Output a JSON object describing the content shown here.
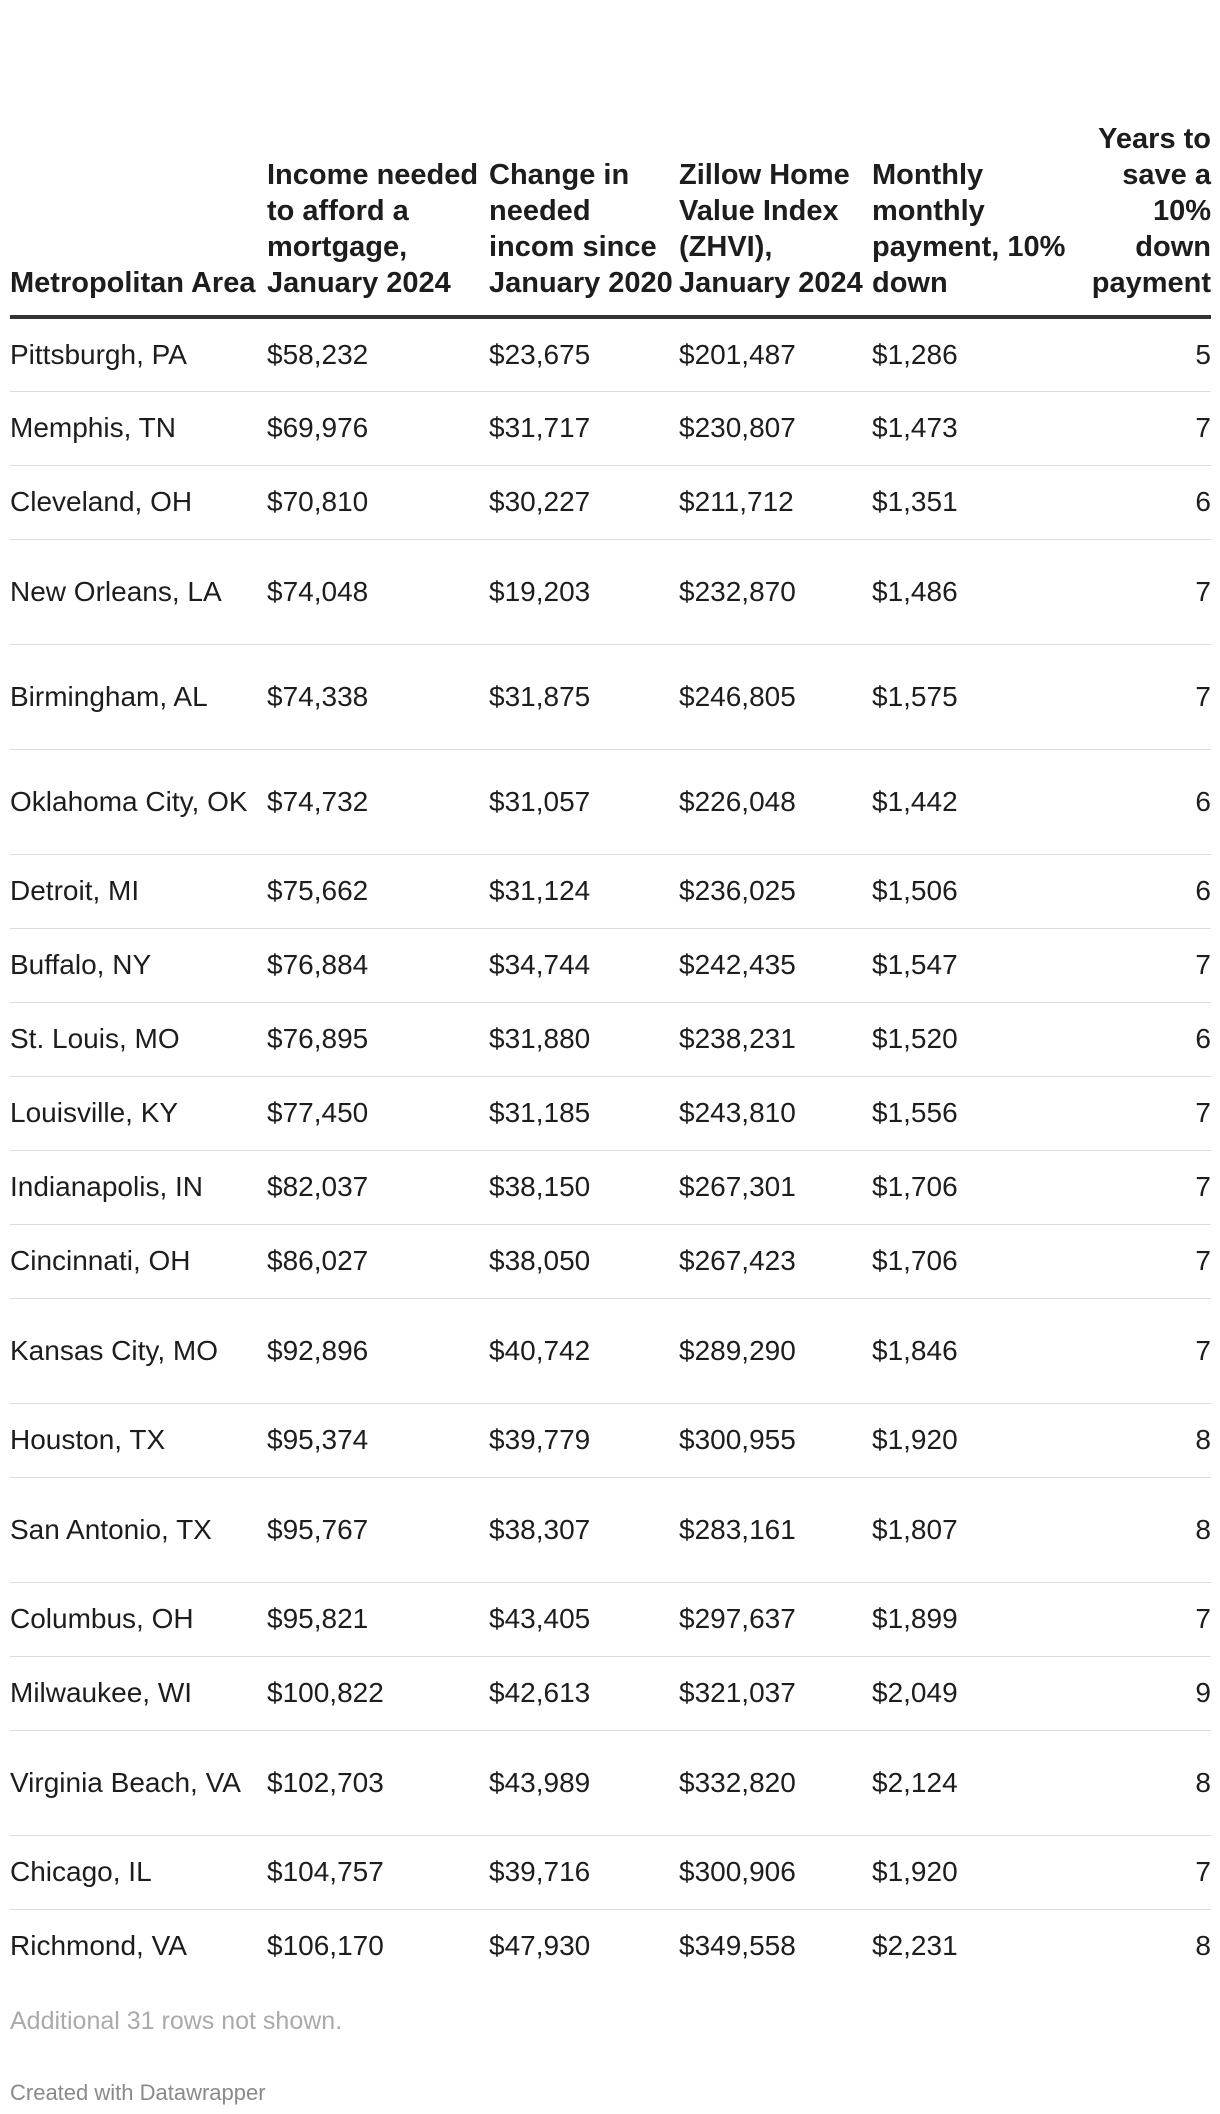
{
  "chart_data": {
    "type": "table",
    "columns": [
      "Metropolitan Area",
      "Income needed to afford a mortgage, January 2024",
      "Change in needed incom since January 2020",
      "Zillow Home Value Index (ZHVI), January 2024",
      "Monthly monthly payment, 10% down",
      "Years to save a 10% down payment"
    ],
    "rows": [
      {
        "area": "Pittsburgh, PA",
        "income": "$58,232",
        "change": "$23,675",
        "zhvi": "$201,487",
        "payment": "$1,286",
        "years": "5"
      },
      {
        "area": "Memphis, TN",
        "income": "$69,976",
        "change": "$31,717",
        "zhvi": "$230,807",
        "payment": "$1,473",
        "years": "7"
      },
      {
        "area": "Cleveland, OH",
        "income": "$70,810",
        "change": "$30,227",
        "zhvi": "$211,712",
        "payment": "$1,351",
        "years": "6"
      },
      {
        "area": "New Orleans, LA",
        "income": "$74,048",
        "change": "$19,203",
        "zhvi": "$232,870",
        "payment": "$1,486",
        "years": "7"
      },
      {
        "area": "Birmingham, AL",
        "income": "$74,338",
        "change": "$31,875",
        "zhvi": "$246,805",
        "payment": "$1,575",
        "years": "7"
      },
      {
        "area": "Oklahoma City, OK",
        "income": "$74,732",
        "change": "$31,057",
        "zhvi": "$226,048",
        "payment": "$1,442",
        "years": "6"
      },
      {
        "area": "Detroit, MI",
        "income": "$75,662",
        "change": "$31,124",
        "zhvi": "$236,025",
        "payment": "$1,506",
        "years": "6"
      },
      {
        "area": "Buffalo, NY",
        "income": "$76,884",
        "change": "$34,744",
        "zhvi": "$242,435",
        "payment": "$1,547",
        "years": "7"
      },
      {
        "area": "St. Louis, MO",
        "income": "$76,895",
        "change": "$31,880",
        "zhvi": "$238,231",
        "payment": "$1,520",
        "years": "6"
      },
      {
        "area": "Louisville, KY",
        "income": "$77,450",
        "change": "$31,185",
        "zhvi": "$243,810",
        "payment": "$1,556",
        "years": "7"
      },
      {
        "area": "Indianapolis, IN",
        "income": "$82,037",
        "change": "$38,150",
        "zhvi": "$267,301",
        "payment": "$1,706",
        "years": "7"
      },
      {
        "area": "Cincinnati, OH",
        "income": "$86,027",
        "change": "$38,050",
        "zhvi": "$267,423",
        "payment": "$1,706",
        "years": "7"
      },
      {
        "area": "Kansas City, MO",
        "income": "$92,896",
        "change": "$40,742",
        "zhvi": "$289,290",
        "payment": "$1,846",
        "years": "7"
      },
      {
        "area": "Houston, TX",
        "income": "$95,374",
        "change": "$39,779",
        "zhvi": "$300,955",
        "payment": "$1,920",
        "years": "8"
      },
      {
        "area": "San Antonio, TX",
        "income": "$95,767",
        "change": "$38,307",
        "zhvi": "$283,161",
        "payment": "$1,807",
        "years": "8"
      },
      {
        "area": "Columbus, OH",
        "income": "$95,821",
        "change": "$43,405",
        "zhvi": "$297,637",
        "payment": "$1,899",
        "years": "7"
      },
      {
        "area": "Milwaukee, WI",
        "income": "$100,822",
        "change": "$42,613",
        "zhvi": "$321,037",
        "payment": "$2,049",
        "years": "9"
      },
      {
        "area": "Virginia Beach, VA",
        "income": "$102,703",
        "change": "$43,989",
        "zhvi": "$332,820",
        "payment": "$2,124",
        "years": "8"
      },
      {
        "area": "Chicago, IL",
        "income": "$104,757",
        "change": "$39,716",
        "zhvi": "$300,906",
        "payment": "$1,920",
        "years": "7"
      },
      {
        "area": "Richmond, VA",
        "income": "$106,170",
        "change": "$47,930",
        "zhvi": "$349,558",
        "payment": "$2,231",
        "years": "8"
      }
    ]
  },
  "footer": {
    "note": "Additional 31 rows not shown.",
    "credit": "Created with Datawrapper"
  }
}
